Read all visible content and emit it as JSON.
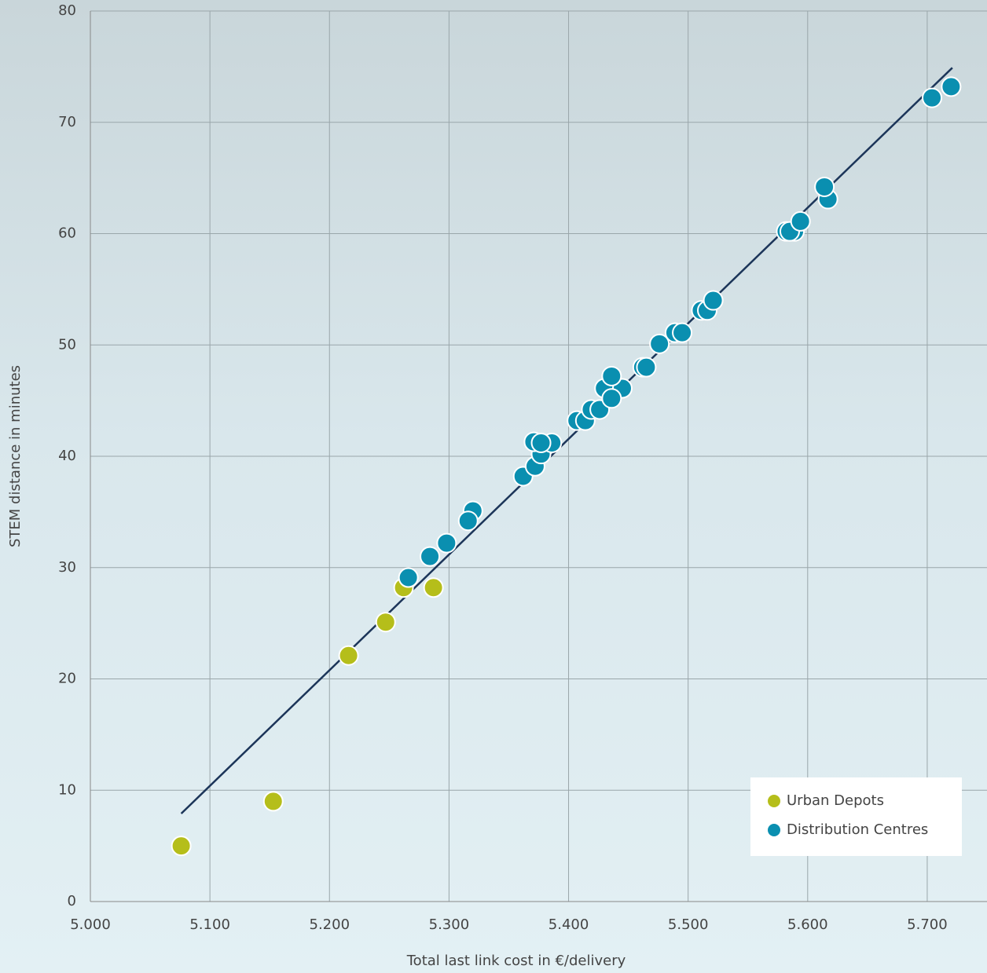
{
  "chart_data": {
    "type": "scatter",
    "xlabel": "Total last link cost in €/delivery",
    "ylabel": "STEM distance in minutes",
    "xlim": [
      5000,
      5750
    ],
    "ylim": [
      0,
      80
    ],
    "xticks": [
      {
        "value": 5000,
        "label": "5.000"
      },
      {
        "value": 5100,
        "label": "5.100"
      },
      {
        "value": 5200,
        "label": "5.200"
      },
      {
        "value": 5300,
        "label": "5.300"
      },
      {
        "value": 5400,
        "label": "5.400"
      },
      {
        "value": 5500,
        "label": "5.500"
      },
      {
        "value": 5600,
        "label": "5.600"
      },
      {
        "value": 5700,
        "label": "5.700"
      }
    ],
    "yticks": [
      0,
      10,
      20,
      30,
      40,
      50,
      60,
      70,
      80
    ],
    "grid": true,
    "legend": "lower right",
    "series": [
      {
        "name": "Urban Depots",
        "color": "#b5be1a",
        "x": [
          5076,
          5153,
          5216,
          5247,
          5262,
          5287
        ],
        "values": [
          5.0,
          9.0,
          22.1,
          25.1,
          28.2,
          28.2
        ]
      },
      {
        "name": "Distribution Centres",
        "color": "#0a8fb0",
        "x": [
          5266,
          5284,
          5298,
          5320,
          5316,
          5362,
          5372,
          5377,
          5371,
          5386,
          5377,
          5407,
          5414,
          5419,
          5426,
          5430,
          5445,
          5436,
          5436,
          5462,
          5465,
          5476,
          5489,
          5495,
          5511,
          5516,
          5521,
          5582,
          5589,
          5585,
          5594,
          5617,
          5614,
          5704,
          5720
        ],
        "values": [
          29.1,
          31.0,
          32.2,
          35.1,
          34.2,
          38.2,
          39.1,
          40.2,
          41.3,
          41.2,
          41.2,
          43.2,
          43.2,
          44.2,
          44.2,
          46.1,
          46.1,
          47.2,
          45.2,
          48.0,
          48.0,
          50.1,
          51.1,
          51.1,
          53.1,
          53.1,
          54.0,
          60.2,
          60.2,
          60.2,
          61.1,
          63.1,
          64.2,
          72.2,
          73.2
        ]
      }
    ],
    "trendline": {
      "color": "#1c3559",
      "x": [
        5076,
        5721
      ],
      "values": [
        7.9,
        74.9
      ]
    }
  }
}
